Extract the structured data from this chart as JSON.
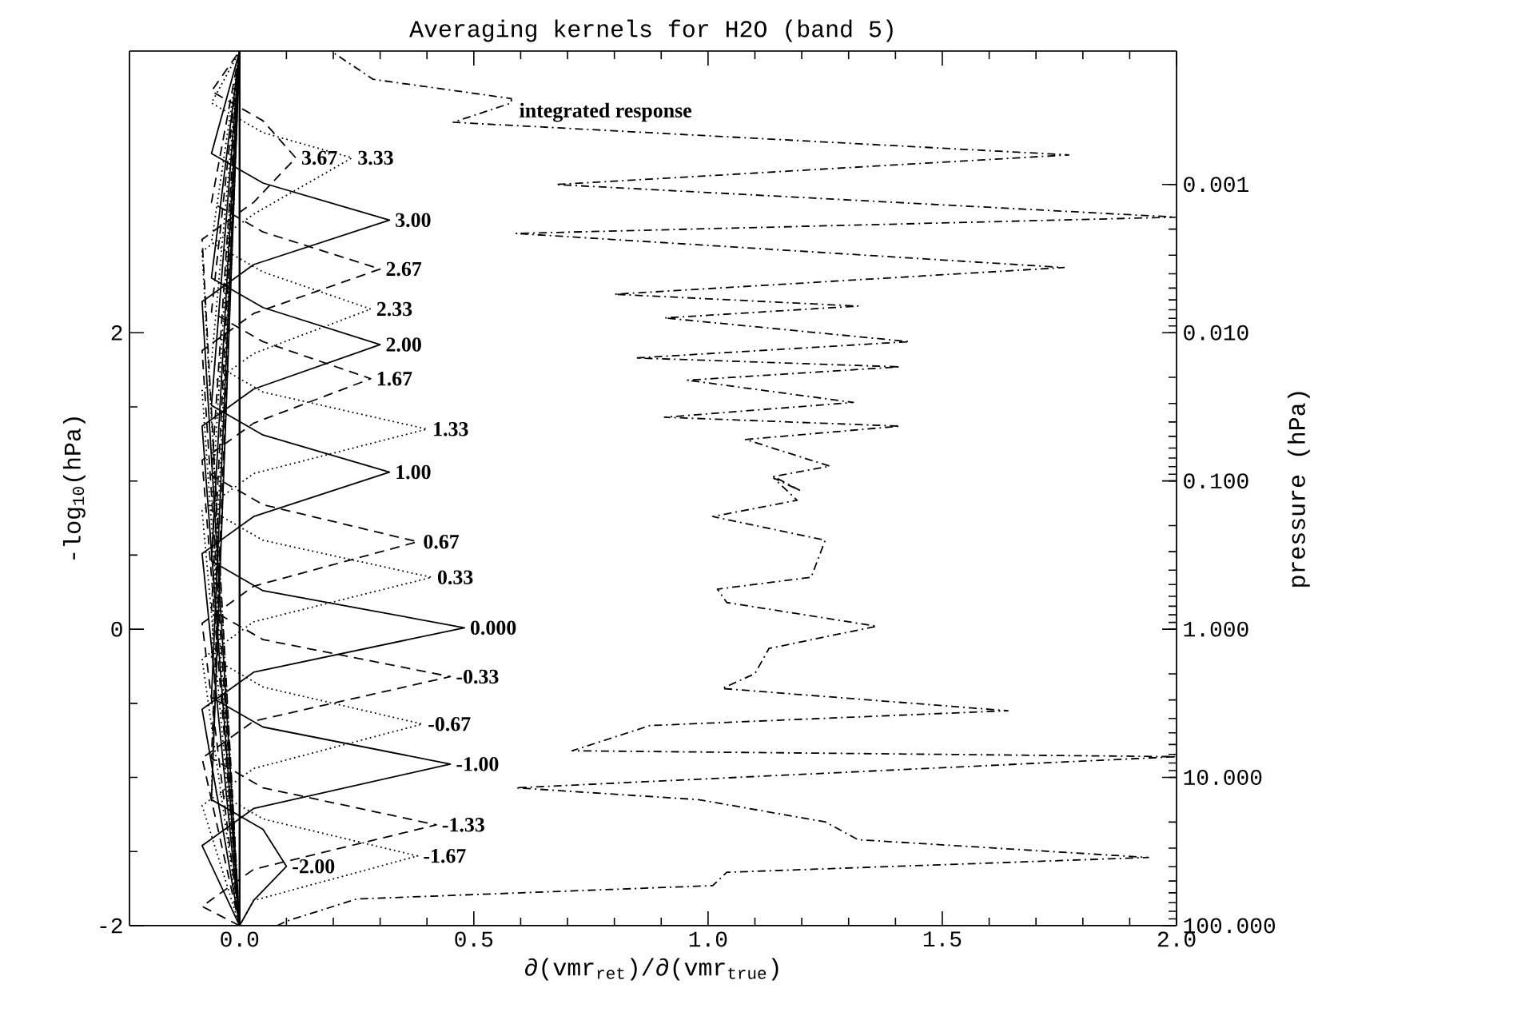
{
  "chart_data": {
    "type": "line",
    "title": "Averaging kernels for H2O (band 5)",
    "xlabel": "∂(vmr$_{ret}$)/∂(vmr$_{true}$)",
    "ylabel": "-log$_{10}$(hPa)",
    "y2label": "pressure (hPa)",
    "xlim": [
      -0.235,
      2.0
    ],
    "ylim": [
      -2.0,
      3.9
    ],
    "xticks": [
      {
        "value": 0,
        "label": "0.0"
      },
      {
        "value": 0.5,
        "label": "0.5"
      },
      {
        "value": 1,
        "label": "1.0"
      },
      {
        "value": 1.5,
        "label": "1.5"
      },
      {
        "value": 2,
        "label": "2.0"
      }
    ],
    "yticks": [
      -2,
      0,
      2
    ],
    "log": "y2",
    "y2lim": [
      100,
      0.000126
    ],
    "y2ticks": [
      {
        "value": 0.001,
        "label": "0.001"
      },
      {
        "value": 0.01,
        "label": "0.010"
      },
      {
        "value": 0.1,
        "label": "0.100"
      },
      {
        "value": 1,
        "label": "1.000"
      },
      {
        "value": 10,
        "label": "10.000"
      },
      {
        "value": 100,
        "label": "100.000"
      }
    ],
    "ref_lines": [
      {
        "axis": "x",
        "value": 0,
        "color": "#000000"
      }
    ],
    "annotations": [
      "integrated response",
      {
        "text": "3.67",
        "x": 0.12,
        "y": 3.18
      },
      {
        "text": "3.33",
        "x": 0.24,
        "y": 3.18
      },
      {
        "text": "3.00",
        "x": 0.32,
        "y": 2.76
      },
      {
        "text": "2.67",
        "x": 0.3,
        "y": 2.43
      },
      {
        "text": "2.33",
        "x": 0.28,
        "y": 2.16
      },
      {
        "text": "2.00",
        "x": 0.3,
        "y": 1.92
      },
      {
        "text": "1.67",
        "x": 0.28,
        "y": 1.69
      },
      {
        "text": "1.33",
        "x": 0.4,
        "y": 1.35
      },
      {
        "text": "1.00",
        "x": 0.32,
        "y": 1.06
      },
      {
        "text": "0.67",
        "x": 0.38,
        "y": 0.59
      },
      {
        "text": "0.33",
        "x": 0.41,
        "y": 0.35
      },
      {
        "text": "0.000",
        "x": 0.48,
        "y": 0.01
      },
      {
        "text": "-0.33",
        "x": 0.45,
        "y": -0.32
      },
      {
        "text": "-0.67",
        "x": 0.39,
        "y": -0.64
      },
      {
        "text": "-1.00",
        "x": 0.45,
        "y": -0.91
      },
      {
        "text": "-1.33",
        "x": 0.42,
        "y": -1.32
      },
      {
        "text": "-2.00",
        "x": 0.1,
        "y": -1.6
      },
      {
        "text": "-1.67",
        "x": 0.38,
        "y": -1.53
      }
    ],
    "series": [
      {
        "color": "#000000",
        "line_style": "dashdot",
        "x": [
          0.08,
          0.1,
          0.25,
          1.01,
          1.04,
          1.94,
          1.32,
          1.25,
          0.98,
          0.59,
          2.0,
          0.71,
          0.876,
          1.64,
          1.03,
          1.1,
          1.13,
          1.36,
          1.04,
          1.02,
          1.22,
          1.25,
          1.01,
          1.19,
          1.14,
          1.2,
          1.14,
          1.26,
          1.08,
          1.41,
          0.907,
          1.31,
          0.956,
          1.41,
          0.846,
          1.43,
          0.907,
          1.32,
          0.8,
          1.76,
          0.59,
          2.0,
          0.675,
          1.77,
          0.456,
          0.58,
          0.58,
          0.285,
          0.2
        ],
        "values": [
          -2.0,
          -1.97,
          -1.82,
          -1.73,
          -1.64,
          -1.54,
          -1.42,
          -1.3,
          -1.15,
          -1.07,
          -0.86,
          -0.82,
          -0.65,
          -0.55,
          -0.4,
          -0.3,
          -0.13,
          0.02,
          0.18,
          0.27,
          0.35,
          0.6,
          0.76,
          0.87,
          1.02,
          0.93,
          1.03,
          1.1,
          1.28,
          1.37,
          1.43,
          1.53,
          1.68,
          1.77,
          1.83,
          1.94,
          2.1,
          2.18,
          2.26,
          2.44,
          2.67,
          2.78,
          3.0,
          3.2,
          3.42,
          3.55,
          3.58,
          3.71,
          3.89
        ]
      },
      {
        "color": "#000000",
        "line_style": "dashed",
        "x": [
          0,
          -0.08,
          0.03,
          0.12,
          0.05,
          -0.06,
          0
        ],
        "values": [
          -2.0,
          2.63,
          2.88,
          3.18,
          3.43,
          3.63,
          3.9
        ]
      },
      {
        "color": "#000000",
        "line_style": "dotted",
        "x": [
          0,
          -0.08,
          0.03,
          0.24,
          0.05,
          -0.06,
          0
        ],
        "values": [
          -2.0,
          2.55,
          2.8,
          3.18,
          3.35,
          3.55,
          3.9
        ]
      },
      {
        "color": "#000000",
        "line_style": "solid",
        "x": [
          0,
          -0.08,
          0.03,
          0.32,
          0.05,
          -0.06,
          0
        ],
        "values": [
          -2.0,
          2.21,
          2.46,
          2.76,
          3.01,
          3.21,
          3.9
        ]
      },
      {
        "color": "#000000",
        "line_style": "dashed",
        "x": [
          0,
          -0.08,
          0.03,
          0.3,
          0.05,
          -0.06,
          0
        ],
        "values": [
          -2.0,
          1.88,
          2.13,
          2.43,
          2.68,
          2.88,
          3.9
        ]
      },
      {
        "color": "#000000",
        "line_style": "dotted",
        "x": [
          0,
          -0.08,
          0.03,
          0.28,
          0.05,
          -0.06,
          0
        ],
        "values": [
          -2.0,
          1.61,
          1.86,
          2.16,
          2.41,
          2.61,
          3.9
        ]
      },
      {
        "color": "#000000",
        "line_style": "solid",
        "x": [
          0,
          -0.08,
          0.03,
          0.3,
          0.05,
          -0.06,
          0
        ],
        "values": [
          -2.0,
          1.37,
          1.62,
          1.92,
          2.17,
          2.37,
          3.9
        ]
      },
      {
        "color": "#000000",
        "line_style": "dashed",
        "x": [
          0,
          -0.08,
          0.03,
          0.28,
          0.05,
          -0.06,
          0
        ],
        "values": [
          -2.0,
          1.14,
          1.39,
          1.69,
          1.94,
          2.14,
          3.9
        ]
      },
      {
        "color": "#000000",
        "line_style": "dotted",
        "x": [
          0,
          -0.08,
          0.03,
          0.4,
          0.05,
          -0.06,
          0
        ],
        "values": [
          -2.0,
          0.8,
          1.05,
          1.35,
          1.6,
          1.8,
          3.9
        ]
      },
      {
        "color": "#000000",
        "line_style": "solid",
        "x": [
          0,
          -0.08,
          0.03,
          0.32,
          0.05,
          -0.06,
          0
        ],
        "values": [
          -2.0,
          0.51,
          0.76,
          1.06,
          1.31,
          1.51,
          3.9
        ]
      },
      {
        "color": "#000000",
        "line_style": "dashed",
        "x": [
          0,
          -0.08,
          0.03,
          0.38,
          0.05,
          -0.06,
          0
        ],
        "values": [
          -2.0,
          0.04,
          0.29,
          0.59,
          0.84,
          1.04,
          3.9
        ]
      },
      {
        "color": "#000000",
        "line_style": "dotted",
        "x": [
          0,
          -0.08,
          0.03,
          0.41,
          0.05,
          -0.06,
          0
        ],
        "values": [
          -2.0,
          -0.2,
          0.05,
          0.35,
          0.6,
          0.8,
          3.9
        ]
      },
      {
        "color": "#000000",
        "line_style": "solid",
        "x": [
          0,
          -0.08,
          0.03,
          0.48,
          0.05,
          -0.06,
          0
        ],
        "values": [
          -2.0,
          -0.54,
          -0.29,
          0.01,
          0.26,
          0.46,
          3.9
        ]
      },
      {
        "color": "#000000",
        "line_style": "dashed",
        "x": [
          0,
          -0.08,
          0.03,
          0.45,
          0.05,
          -0.06,
          0
        ],
        "values": [
          -2.0,
          -0.87,
          -0.62,
          -0.32,
          -0.07,
          0.13,
          3.9
        ]
      },
      {
        "color": "#000000",
        "line_style": "dotted",
        "x": [
          0,
          -0.08,
          0.03,
          0.39,
          0.05,
          -0.06,
          0
        ],
        "values": [
          -2.0,
          -1.19,
          -0.94,
          -0.64,
          -0.39,
          -0.19,
          3.9
        ]
      },
      {
        "color": "#000000",
        "line_style": "solid",
        "x": [
          0,
          -0.08,
          0.03,
          0.45,
          0.05,
          -0.06,
          0
        ],
        "values": [
          -2.0,
          -1.46,
          -1.21,
          -0.91,
          -0.66,
          -0.46,
          3.9
        ]
      },
      {
        "color": "#000000",
        "line_style": "dashed",
        "x": [
          0,
          -0.08,
          0.03,
          0.42,
          0.05,
          -0.06,
          0
        ],
        "values": [
          -2.0,
          -1.87,
          -1.62,
          -1.32,
          -1.07,
          -0.87,
          3.9
        ]
      },
      {
        "color": "#000000",
        "line_style": "dotted",
        "x": [
          0,
          0.03,
          0.38,
          0.05,
          -0.06,
          0
        ],
        "values": [
          -2.0,
          -1.83,
          -1.53,
          -1.28,
          -1.08,
          3.9
        ]
      },
      {
        "color": "#000000",
        "line_style": "solid",
        "x": [
          0,
          0.03,
          0.1,
          0.05,
          -0.06,
          0
        ],
        "values": [
          -2.0,
          -1.83,
          -1.6,
          -1.35,
          -1.15,
          3.9
        ]
      }
    ]
  }
}
